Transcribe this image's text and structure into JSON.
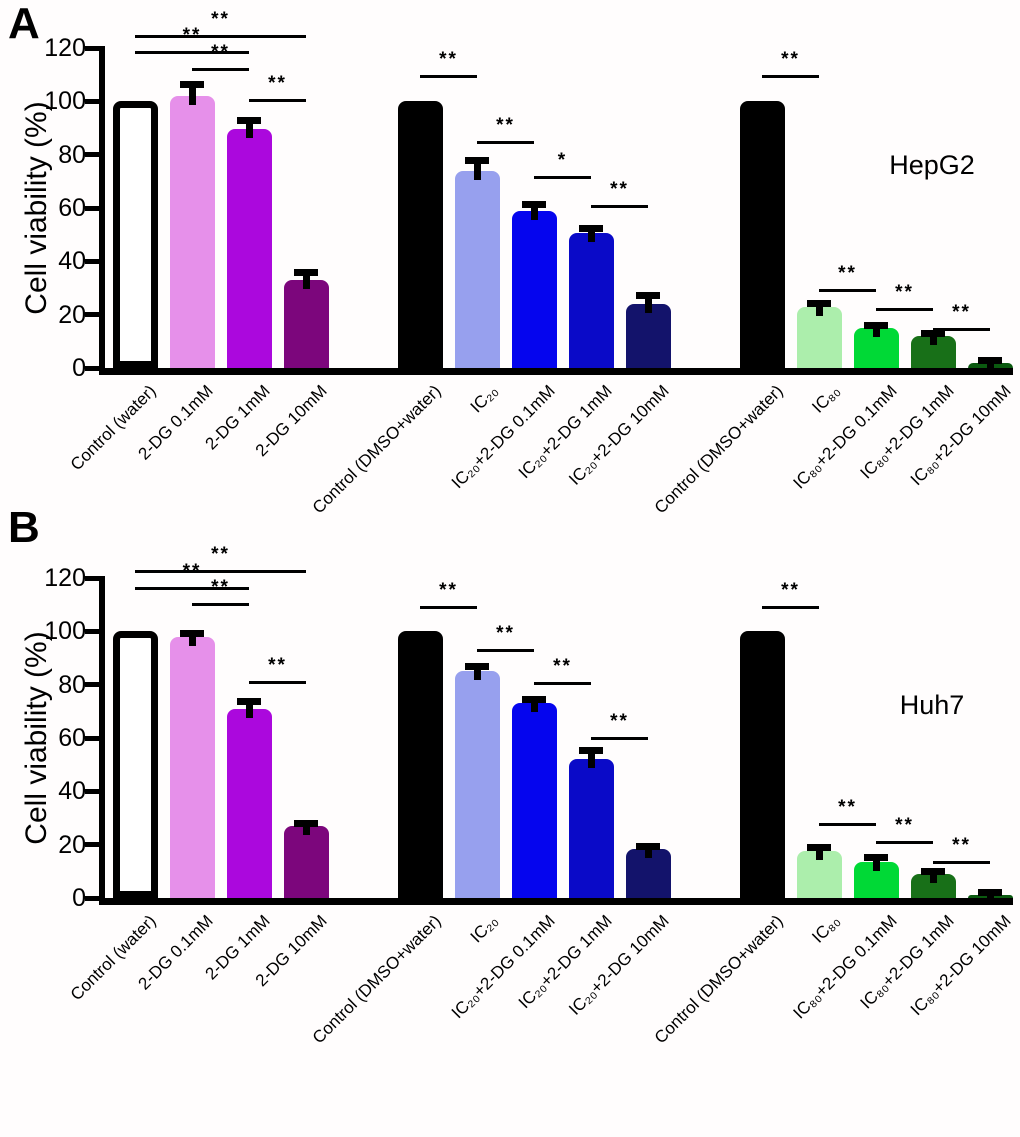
{
  "figure": {
    "background": "#fffdfd",
    "axis_color": "#000000",
    "text_color": "#000000"
  },
  "chart_data": [
    {
      "type": "bar",
      "panel_label": "A",
      "cell_line": "HepG2",
      "title": "",
      "xlabel": "",
      "ylabel": "Cell viability (%)",
      "ylim": [
        0,
        120
      ],
      "yticks": [
        0,
        20,
        40,
        60,
        80,
        100,
        120
      ],
      "grid": false,
      "legend": "none",
      "categories": [
        "Control (water)",
        "2-DG 0.1mM",
        "2-DG 1mM",
        "2-DG 10mM",
        "Control (DMSO+water)",
        "IC₂₀",
        "IC₂₀+2-DG 0.1mM",
        "IC₂₀+2-DG 1mM",
        "IC₂₀+2-DG 10mM",
        "Control (DMSO+water)",
        "IC₈₀",
        "IC₈₀+2-DG 0.1mM",
        "IC₈₀+2-DG 1mM",
        "IC₈₀+2-DG 10mM"
      ],
      "values": [
        100,
        102,
        89.5,
        33,
        100,
        74,
        59,
        50.5,
        24,
        100,
        23,
        15,
        12,
        2
      ],
      "errors": [
        0,
        4.5,
        3.5,
        3,
        0,
        4,
        2.5,
        2,
        3.5,
        0,
        1.5,
        1.2,
        1,
        1
      ],
      "colors": [
        "#ffffff",
        "#e690ea",
        "#ab08dd",
        "#7c067c",
        "#000000",
        "#97a0ee",
        "#0505ee",
        "#0a0ac8",
        "#13136b",
        "#000000",
        "#aceeac",
        "#00d936",
        "#187018",
        "#0b5a10"
      ],
      "groups": [
        [
          0,
          1,
          2,
          3
        ],
        [
          4,
          5,
          6,
          7,
          8
        ],
        [
          9,
          10,
          11,
          12,
          13
        ]
      ],
      "significance": [
        {
          "a": 0,
          "b": 3,
          "y": 125,
          "label": "**"
        },
        {
          "a": 0,
          "b": 2,
          "y": 119,
          "label": "**"
        },
        {
          "a": 1,
          "b": 2,
          "y": 112.5,
          "label": "**"
        },
        {
          "a": 2,
          "b": 3,
          "y": 101,
          "label": "**"
        },
        {
          "a": 4,
          "b": 5,
          "y": 110,
          "label": "**"
        },
        {
          "a": 5,
          "b": 6,
          "y": 85,
          "label": "**"
        },
        {
          "a": 6,
          "b": 7,
          "y": 72,
          "label": "*"
        },
        {
          "a": 7,
          "b": 8,
          "y": 61,
          "label": "**"
        },
        {
          "a": 9,
          "b": 10,
          "y": 110,
          "label": "**"
        },
        {
          "a": 10,
          "b": 11,
          "y": 29.5,
          "label": "**"
        },
        {
          "a": 11,
          "b": 12,
          "y": 22.5,
          "label": "**"
        },
        {
          "a": 12,
          "b": 13,
          "y": 15,
          "label": "**"
        }
      ]
    },
    {
      "type": "bar",
      "panel_label": "B",
      "cell_line": "Huh7",
      "title": "",
      "xlabel": "",
      "ylabel": "Cell viability (%)",
      "ylim": [
        0,
        120
      ],
      "yticks": [
        0,
        20,
        40,
        60,
        80,
        100,
        120
      ],
      "grid": false,
      "legend": "none",
      "categories": [
        "Control (water)",
        "2-DG 0.1mM",
        "2-DG 1mM",
        "2-DG 10mM",
        "Control (DMSO+water)",
        "IC₂₀",
        "IC₂₀+2-DG 0.1mM",
        "IC₂₀+2-DG 1mM",
        "IC₂₀+2-DG 10mM",
        "Control (DMSO+water)",
        "IC₈₀",
        "IC₈₀+2-DG 0.1mM",
        "IC₈₀+2-DG 1mM",
        "IC₈₀+2-DG 10mM"
      ],
      "values": [
        100,
        98,
        71,
        27,
        100,
        85,
        73,
        52,
        18.5,
        100,
        17.5,
        13.5,
        9,
        1.3
      ],
      "errors": [
        0,
        1.2,
        3,
        1,
        0,
        2,
        1.5,
        3.5,
        1,
        0,
        1.5,
        2,
        1,
        0.9
      ],
      "colors": [
        "#ffffff",
        "#e690ea",
        "#ab08dd",
        "#7c067c",
        "#000000",
        "#97a0ee",
        "#0505ee",
        "#0a0ac8",
        "#13136b",
        "#000000",
        "#aceeac",
        "#00d936",
        "#187018",
        "#0b5a10"
      ],
      "groups": [
        [
          0,
          1,
          2,
          3
        ],
        [
          4,
          5,
          6,
          7,
          8
        ],
        [
          9,
          10,
          11,
          12,
          13
        ]
      ],
      "significance": [
        {
          "a": 0,
          "b": 3,
          "y": 123,
          "label": "**"
        },
        {
          "a": 0,
          "b": 2,
          "y": 116.5,
          "label": "**"
        },
        {
          "a": 1,
          "b": 2,
          "y": 110.5,
          "label": "**"
        },
        {
          "a": 2,
          "b": 3,
          "y": 81.5,
          "label": "**"
        },
        {
          "a": 4,
          "b": 5,
          "y": 109.5,
          "label": "**"
        },
        {
          "a": 5,
          "b": 6,
          "y": 93.5,
          "label": "**"
        },
        {
          "a": 6,
          "b": 7,
          "y": 81,
          "label": "**"
        },
        {
          "a": 7,
          "b": 8,
          "y": 60.5,
          "label": "**"
        },
        {
          "a": 9,
          "b": 10,
          "y": 109.5,
          "label": "**"
        },
        {
          "a": 10,
          "b": 11,
          "y": 28,
          "label": "**"
        },
        {
          "a": 11,
          "b": 12,
          "y": 21.5,
          "label": "**"
        },
        {
          "a": 12,
          "b": 13,
          "y": 14,
          "label": "**"
        }
      ]
    }
  ]
}
